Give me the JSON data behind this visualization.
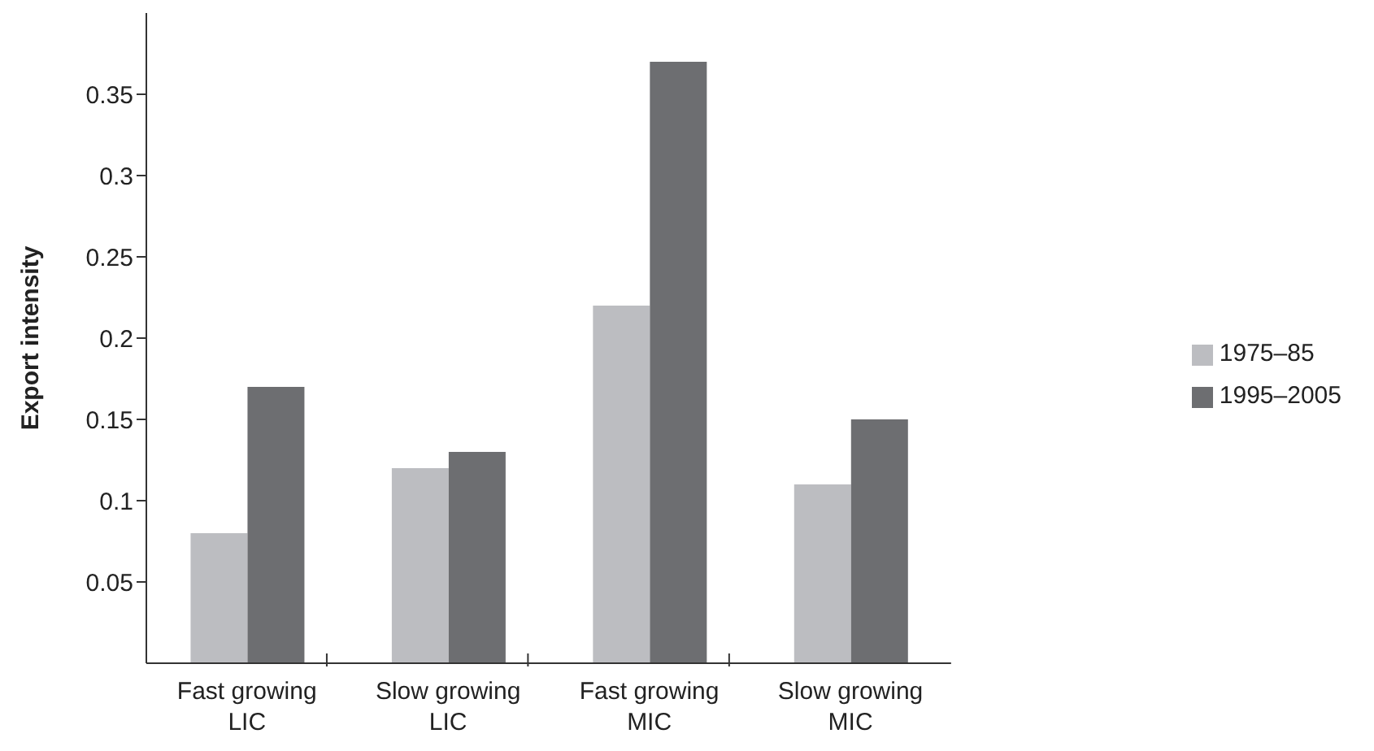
{
  "chart_data": {
    "type": "bar",
    "ylabel": "Export intensity",
    "categories": [
      "Fast growing LIC",
      "Slow growing LIC",
      "Fast growing MIC",
      "Slow growing MIC"
    ],
    "series": [
      {
        "name": "1975–85",
        "color": "#bcbdc1",
        "values": [
          0.08,
          0.12,
          0.22,
          0.11
        ]
      },
      {
        "name": "1995–2005",
        "color": "#6d6e71",
        "values": [
          0.17,
          0.13,
          0.37,
          0.15
        ]
      }
    ],
    "ylim": [
      0,
      0.4
    ],
    "yticks": [
      0.05,
      0.1,
      0.15,
      0.2,
      0.25,
      0.3,
      0.35
    ],
    "grid": false,
    "legend": "right"
  }
}
